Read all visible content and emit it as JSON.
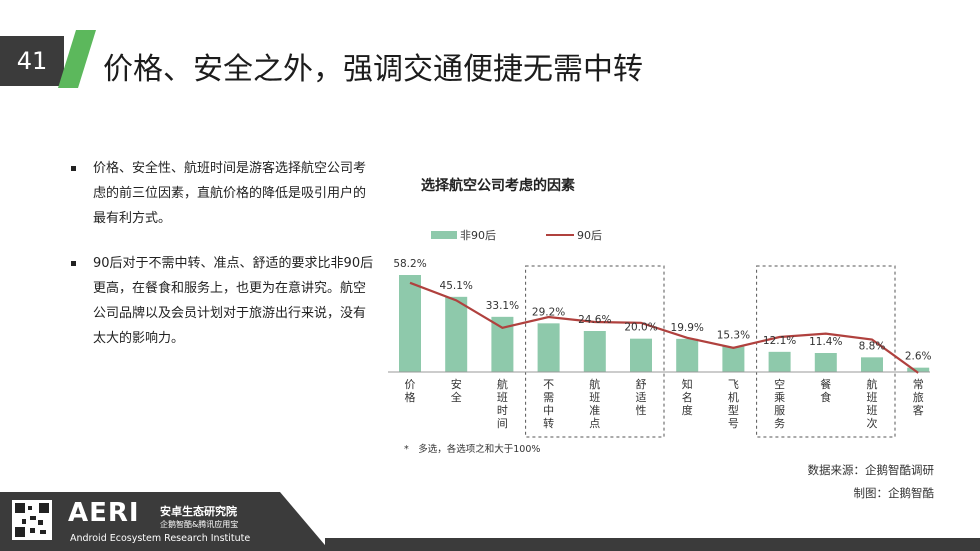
{
  "slide": {
    "page_number": "41",
    "title": "价格、安全之外，强调交通便捷无需中转"
  },
  "bullets": [
    "价格、安全性、航班时间是游客选择航空公司考虑的前三位因素，直航价格的降低是吸引用户的最有利方式。",
    "90后对于不需中转、准点、舒适的要求比非90后更高，在餐食和服务上，也更为在意讲究。航空公司品牌以及会员计划对于旅游出行来说，没有太大的影响力。"
  ],
  "chart_data": {
    "type": "bar",
    "title": "选择航空公司考虑的因素",
    "categories": [
      "价格",
      "安全",
      "航班时间",
      "不需中转",
      "航班准点",
      "舒适性",
      "知名度",
      "飞机型号",
      "空乘服务",
      "餐食",
      "航班班次",
      "常旅客"
    ],
    "series": [
      {
        "name": "非90后",
        "type": "bar",
        "color": "#8ec9ab",
        "values": [
          58.2,
          45.1,
          33.1,
          29.2,
          24.6,
          20.0,
          19.9,
          15.3,
          12.1,
          11.4,
          8.8,
          2.6
        ]
      },
      {
        "name": "90后",
        "type": "line",
        "color": "#b0413e",
        "values": [
          53.5,
          43.0,
          26.5,
          33.0,
          30.0,
          29.5,
          20.5,
          14.5,
          21.0,
          23.0,
          19.5,
          -0.5
        ]
      }
    ],
    "data_labels": [
      "58.2%",
      "45.1%",
      "33.1%",
      "29.2%",
      "24.6%",
      "20.0%",
      "19.9%",
      "15.3%",
      "12.1%",
      "11.4%",
      "8.8%",
      "2.6%"
    ],
    "ylim": [
      0,
      60
    ],
    "legend_position": "top",
    "highlight_groups": [
      [
        3,
        5
      ],
      [
        8,
        10
      ]
    ]
  },
  "footnote": "*　多选，各选项之和大于100%",
  "source": "数据来源：企鹅智酷调研",
  "credit": "制图：企鹅智酷",
  "brand": {
    "logo": "AERI",
    "name_cn": "安卓生态研究院",
    "sub_cn": "企鹅智酷&腾讯应用宝",
    "name_en": "Android Ecosystem Research Institute"
  },
  "colors": {
    "dark": "#3b3b3b",
    "accent_green": "#5cb85c",
    "bar": "#8ec9ab",
    "line": "#b0413e"
  }
}
